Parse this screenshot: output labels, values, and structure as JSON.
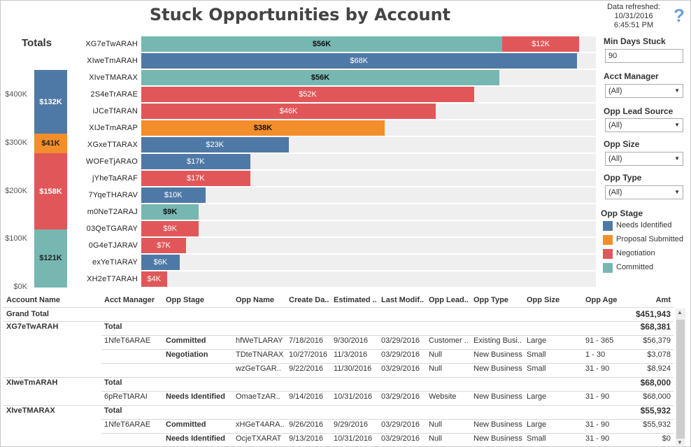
{
  "title": "Stuck Opportunities by Account",
  "refresh": {
    "label": "Data refreshed:",
    "date": "10/31/2016",
    "time": "6:45:51 PM"
  },
  "help_icon": "question-mark-icon",
  "colors": {
    "Needs Identified": "#4e79a7",
    "Proposal Submitted": "#f28e2b",
    "Negotiation": "#e15759",
    "Committed": "#76b7b2"
  },
  "chart_data": [
    {
      "type": "bar",
      "title": "Totals",
      "stacked": true,
      "ylim": [
        0,
        460000
      ],
      "yticks": [
        "$0K",
        "$100K",
        "$200K",
        "$300K",
        "$400K"
      ],
      "ytick_values": [
        0,
        100000,
        200000,
        300000,
        400000
      ],
      "series": [
        {
          "name": "Committed",
          "value": 121000,
          "label": "$121K"
        },
        {
          "name": "Negotiation",
          "value": 158000,
          "label": "$158K"
        },
        {
          "name": "Proposal Submitted",
          "value": 41000,
          "label": "$41K"
        },
        {
          "name": "Needs Identified",
          "value": 132000,
          "label": "$132K"
        }
      ]
    },
    {
      "type": "bar",
      "orientation": "horizontal",
      "stacked": true,
      "xlim": [
        0,
        71000
      ],
      "categories": [
        "XG7eTwARAH",
        "XIweTmARAH",
        "XIveTMARAX",
        "2S4eTrARAE",
        "iJCeTfARAN",
        "XIJeTmARAP",
        "XGxeTTARAX",
        "WOFeTjARAO",
        "jYheTaARAF",
        "7YqeTHARAV",
        "m0NeT2ARAJ",
        "03QeTGARAY",
        "0G4eTJARAV",
        "exYeTIARAY",
        "XH2eT7ARAH"
      ],
      "bars": [
        [
          {
            "stage": "Committed",
            "value": 56379,
            "label": "$56K"
          },
          {
            "stage": "Negotiation",
            "value": 12002,
            "label": "$12K"
          }
        ],
        [
          {
            "stage": "Needs Identified",
            "value": 68000,
            "label": "$68K"
          }
        ],
        [
          {
            "stage": "Committed",
            "value": 55932,
            "label": "$56K"
          }
        ],
        [
          {
            "stage": "Negotiation",
            "value": 52000,
            "label": "$52K"
          }
        ],
        [
          {
            "stage": "Negotiation",
            "value": 46000,
            "label": "$46K"
          }
        ],
        [
          {
            "stage": "Proposal Submitted",
            "value": 38000,
            "label": "$38K"
          }
        ],
        [
          {
            "stage": "Needs Identified",
            "value": 23000,
            "label": "$23K"
          }
        ],
        [
          {
            "stage": "Needs Identified",
            "value": 17000,
            "label": "$17K"
          }
        ],
        [
          {
            "stage": "Negotiation",
            "value": 17000,
            "label": "$17K"
          }
        ],
        [
          {
            "stage": "Needs Identified",
            "value": 10000,
            "label": "$10K"
          }
        ],
        [
          {
            "stage": "Committed",
            "value": 9000,
            "label": "$9K"
          }
        ],
        [
          {
            "stage": "Negotiation",
            "value": 9000,
            "label": "$9K"
          }
        ],
        [
          {
            "stage": "Negotiation",
            "value": 7000,
            "label": "$7K"
          }
        ],
        [
          {
            "stage": "Needs Identified",
            "value": 6000,
            "label": "$6K"
          }
        ],
        [
          {
            "stage": "Negotiation",
            "value": 4000,
            "label": "$4K"
          }
        ]
      ]
    }
  ],
  "filters": {
    "min_days": {
      "label": "Min Days Stuck",
      "value": "90"
    },
    "acct_manager": {
      "label": "Acct Manager",
      "value": "(All)"
    },
    "lead_source": {
      "label": "Opp Lead Source",
      "value": "(All)"
    },
    "opp_size": {
      "label": "Opp Size",
      "value": "(All)"
    },
    "opp_type": {
      "label": "Opp Type",
      "value": "(All)"
    }
  },
  "legend": {
    "title": "Opp Stage",
    "items": [
      "Needs Identified",
      "Proposal Submitted",
      "Negotiation",
      "Committed"
    ]
  },
  "table": {
    "headers": {
      "account": "Account Name",
      "manager": "Acct Manager",
      "stage": "Opp Stage",
      "name": "Opp Name",
      "create": "Create Da..",
      "estimated": "Estimated ..",
      "modified": "Last Modif..",
      "lead": "Opp Lead..",
      "type": "Opp Type",
      "size": "Opp Size",
      "age": "Opp Age",
      "amt": "Amt"
    },
    "grand_total": {
      "label": "Grand Total",
      "amt": "$451,943"
    },
    "groups": [
      {
        "account": "XG7eTwARAH",
        "total_label": "Total",
        "total_amt": "$68,381",
        "rows": [
          {
            "manager": "1NfeT6ARAE",
            "stage": "Committed",
            "name": "hfWeTLARAY",
            "create": "7/18/2016",
            "estimated": "9/30/2016",
            "modified": "03/29/2016",
            "lead": "Customer ..",
            "type": "Existing Busi..",
            "size": "Large",
            "age": "91 - 365",
            "amt": "$56,379"
          },
          {
            "manager": "",
            "stage": "Negotiation",
            "name": "TDteTNARAX",
            "create": "10/27/2016",
            "estimated": "11/3/2016",
            "modified": "03/29/2016",
            "lead": "Null",
            "type": "New Business",
            "size": "Small",
            "age": "1 - 30",
            "amt": "$3,078"
          },
          {
            "manager": "",
            "stage": "",
            "name": "wzGeTGAR..",
            "create": "9/22/2016",
            "estimated": "11/30/2016",
            "modified": "03/29/2016",
            "lead": "Null",
            "type": "New Business",
            "size": "Small",
            "age": "31 - 90",
            "amt": "$8,924"
          }
        ]
      },
      {
        "account": "XIweTmARAH",
        "total_label": "Total",
        "total_amt": "$68,000",
        "rows": [
          {
            "manager": "6pReTtARAI",
            "stage": "Needs Identified",
            "name": "OmaeTzAR..",
            "create": "9/14/2016",
            "estimated": "10/31/2016",
            "modified": "03/29/2016",
            "lead": "Website",
            "type": "New Business",
            "size": "Large",
            "age": "31 - 90",
            "amt": "$68,000"
          }
        ]
      },
      {
        "account": "XIveTMARAX",
        "total_label": "Total",
        "total_amt": "$55,932",
        "rows": [
          {
            "manager": "1NfeT6ARAE",
            "stage": "Committed",
            "name": "xHGeT4ARA..",
            "create": "9/26/2016",
            "estimated": "9/29/2016",
            "modified": "03/29/2016",
            "lead": "Null",
            "type": "New Business",
            "size": "Large",
            "age": "31 - 90",
            "amt": "$55,932"
          },
          {
            "manager": "",
            "stage": "Needs Identified",
            "name": "OcjeTXARAT",
            "create": "9/13/2016",
            "estimated": "10/31/2016",
            "modified": "03/29/2016",
            "lead": "Null",
            "type": "New Business",
            "size": "Small",
            "age": "31 - 90",
            "amt": "$0"
          }
        ]
      }
    ]
  }
}
